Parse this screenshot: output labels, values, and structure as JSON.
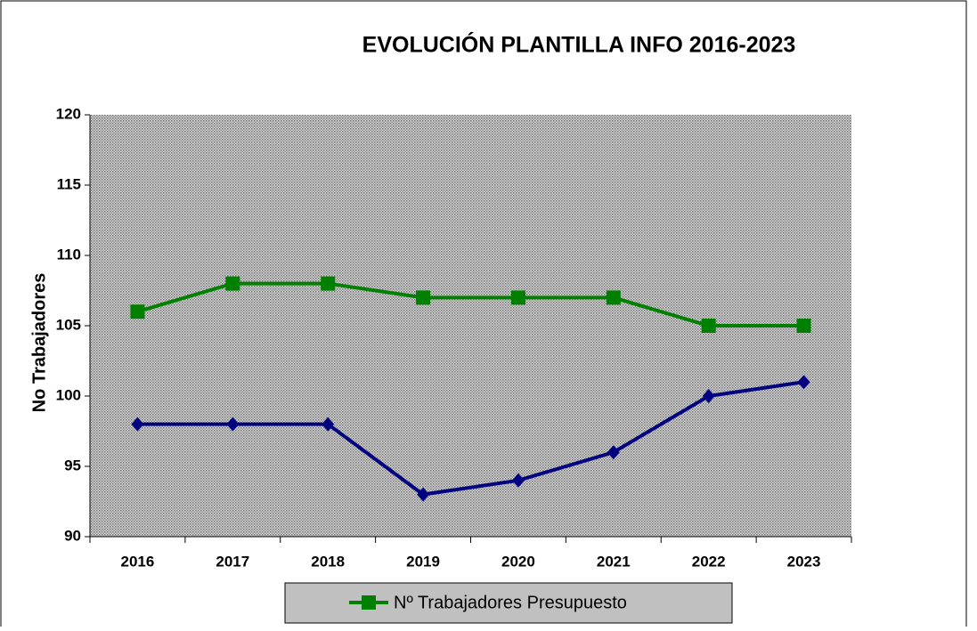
{
  "chart_data": {
    "type": "line",
    "title": "EVOLUCIÓN PLANTILLA INFO 2016-2023",
    "y_label": "No Trabajadores",
    "categories": [
      "2016",
      "2017",
      "2018",
      "2019",
      "2020",
      "2021",
      "2022",
      "2023"
    ],
    "series": [
      {
        "name": "Nº Trabajadores Presupuesto",
        "color": "#008000",
        "marker": "square",
        "values": [
          106,
          108,
          108,
          107,
          107,
          107,
          105,
          105
        ]
      },
      {
        "color": "#000080",
        "marker": "diamond",
        "values": [
          98,
          98,
          98,
          93,
          94,
          96,
          100,
          101
        ]
      }
    ],
    "ylim": [
      90,
      120
    ],
    "yticks": [
      90,
      95,
      100,
      105,
      110,
      115,
      120
    ],
    "legend": "bottom"
  }
}
